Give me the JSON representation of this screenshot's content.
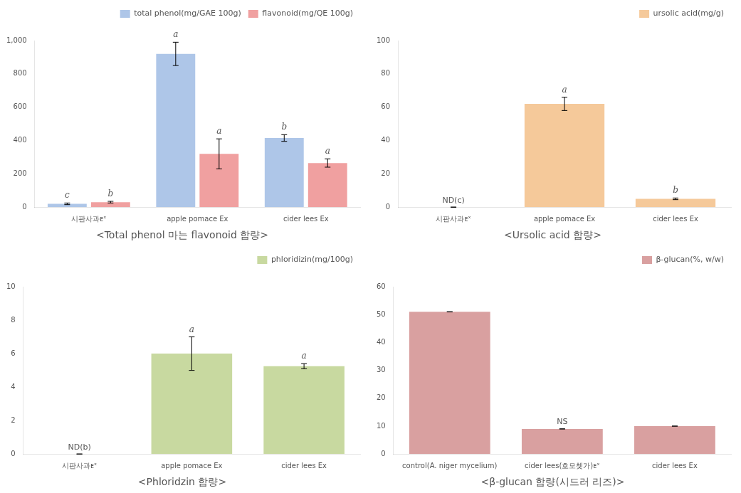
{
  "chart_data": [
    {
      "type": "bar",
      "title": "<Total phenol 마는 flavonoid 함량>",
      "categories": [
        "시판사과ᴇˣ",
        "apple pomace Ex",
        "cider lees Ex"
      ],
      "series": [
        {
          "name": "total phenol(mg/GAE 100g)",
          "color": "#aec6e8",
          "values": [
            20,
            920,
            415
          ],
          "errors": [
            5,
            70,
            20
          ],
          "annotations": [
            "c",
            "a",
            "b"
          ]
        },
        {
          "name": "flavonoid(mg/QE 100g)",
          "color": "#f0a0a0",
          "values": [
            30,
            320,
            265
          ],
          "errors": [
            5,
            90,
            25
          ],
          "annotations": [
            "b",
            "a",
            "a"
          ]
        }
      ],
      "ylim": [
        0,
        1000
      ],
      "yticks": [
        0,
        200,
        400,
        600,
        800,
        {
          "value": 1000,
          "label": "1,000"
        }
      ],
      "grid": false,
      "legend": "upper right"
    },
    {
      "type": "bar",
      "title": "<Ursolic acid 함량>",
      "categories": [
        "시판사과ᴇˣ",
        "apple pomace Ex",
        "cider lees Ex"
      ],
      "series": [
        {
          "name": "ursolic acid(mg/g)",
          "color": "#f5c99a",
          "values": [
            0,
            62,
            5
          ],
          "errors": [
            0,
            4,
            0.5
          ],
          "annotations": [
            "ND(c)",
            "a",
            "b"
          ]
        }
      ],
      "ylim": [
        0,
        100
      ],
      "yticks": [
        0,
        20,
        40,
        60,
        80,
        100
      ],
      "grid": false,
      "legend": "upper right"
    },
    {
      "type": "bar",
      "title": "<Phloridzin 함량>",
      "categories": [
        "시판사과ᴇˣ",
        "apple pomace Ex",
        "cider lees Ex"
      ],
      "series": [
        {
          "name": "phloridizin(mg/100g)",
          "color": "#c8d9a0",
          "values": [
            0,
            6.0,
            5.25
          ],
          "errors": [
            0,
            1.0,
            0.15
          ],
          "annotations": [
            "ND(b)",
            "a",
            "a"
          ]
        }
      ],
      "ylim": [
        0,
        10
      ],
      "yticks": [
        0,
        2,
        4,
        6,
        8,
        10
      ],
      "grid": false,
      "legend": "upper right"
    },
    {
      "type": "bar",
      "title": "<β-glucan 함량(시드러 리즈)>",
      "categories": [
        "control(A. niger mycelium)",
        "cider lees(호모쳊가)ᴇˣ",
        "cider lees Ex"
      ],
      "series": [
        {
          "name": "β-glucan(%, w/w)",
          "color": "#d9a0a0",
          "values": [
            51,
            9,
            10
          ],
          "errors": [
            0,
            0,
            0
          ],
          "annotations": [
            null,
            "NS",
            null
          ]
        }
      ],
      "ylim": [
        0,
        60
      ],
      "yticks": [
        0,
        10,
        20,
        30,
        40,
        50,
        60
      ],
      "grid": false,
      "legend": "upper right"
    }
  ]
}
